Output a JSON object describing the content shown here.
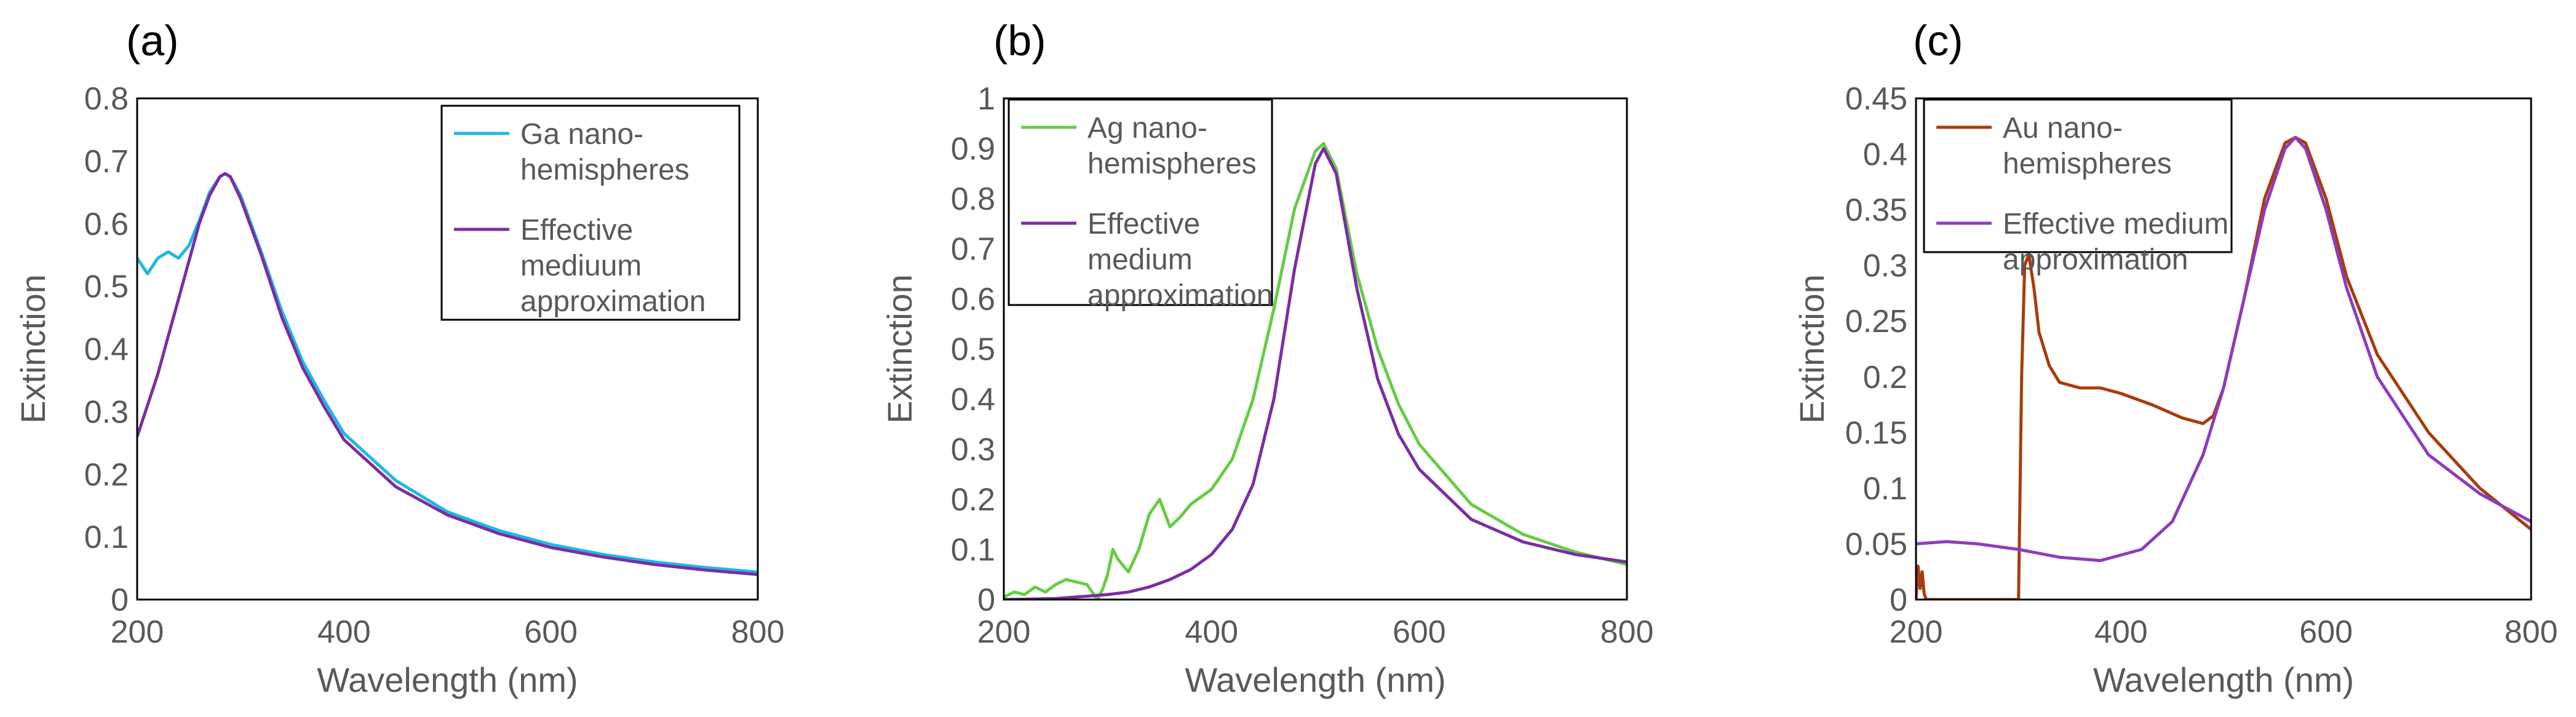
{
  "figure": {
    "colors": {
      "frame": "#000000",
      "tick_text": "#595959",
      "panel_label": "#000000"
    }
  },
  "chart_data": [
    {
      "type": "line",
      "panel_label": "(a)",
      "xlabel": "Wavelength (nm)",
      "ylabel": "Extinction",
      "xlim": [
        200,
        800
      ],
      "ylim": [
        0,
        0.8
      ],
      "xticks": [
        200,
        400,
        600,
        800
      ],
      "yticks": [
        0,
        0.1,
        0.2,
        0.3,
        0.4,
        0.5,
        0.6,
        0.7,
        0.8
      ],
      "grid": false,
      "legend_position": "top-right",
      "series": [
        {
          "name": "Ga nano-hemispheres",
          "legend_lines": [
            "Ga nano-",
            "hemispheres"
          ],
          "color": "#1CB8E6",
          "x": [
            200,
            210,
            220,
            230,
            240,
            250,
            260,
            270,
            280,
            285,
            290,
            300,
            320,
            340,
            360,
            380,
            400,
            450,
            500,
            550,
            600,
            650,
            700,
            750,
            800
          ],
          "y": [
            0.545,
            0.52,
            0.545,
            0.555,
            0.545,
            0.565,
            0.605,
            0.65,
            0.675,
            0.68,
            0.675,
            0.645,
            0.555,
            0.46,
            0.38,
            0.32,
            0.265,
            0.19,
            0.14,
            0.11,
            0.088,
            0.072,
            0.06,
            0.051,
            0.044
          ]
        },
        {
          "name": "Effective mediuum approximation",
          "legend_lines": [
            "Effective",
            "mediuum",
            "approximation"
          ],
          "color": "#7B2DA3",
          "x": [
            200,
            210,
            220,
            230,
            240,
            250,
            260,
            270,
            280,
            285,
            290,
            300,
            320,
            340,
            360,
            380,
            400,
            450,
            500,
            550,
            600,
            650,
            700,
            750,
            800
          ],
          "y": [
            0.26,
            0.31,
            0.36,
            0.42,
            0.48,
            0.54,
            0.6,
            0.645,
            0.675,
            0.68,
            0.675,
            0.64,
            0.55,
            0.45,
            0.37,
            0.31,
            0.255,
            0.18,
            0.135,
            0.105,
            0.083,
            0.068,
            0.056,
            0.047,
            0.04
          ]
        }
      ]
    },
    {
      "type": "line",
      "panel_label": "(b)",
      "xlabel": "Wavelength (nm)",
      "ylabel": "Extinction",
      "xlim": [
        200,
        800
      ],
      "ylim": [
        0,
        1
      ],
      "xticks": [
        200,
        400,
        600,
        800
      ],
      "yticks": [
        0,
        0.1,
        0.2,
        0.3,
        0.4,
        0.5,
        0.6,
        0.7,
        0.8,
        0.9,
        1
      ],
      "grid": false,
      "legend_position": "top-left",
      "series": [
        {
          "name": "Ag nano-hemispheres",
          "legend_lines": [
            "Ag nano-",
            "hemispheres"
          ],
          "color": "#66CC44",
          "x": [
            200,
            210,
            220,
            230,
            240,
            250,
            260,
            270,
            280,
            290,
            295,
            300,
            305,
            310,
            320,
            330,
            340,
            350,
            360,
            370,
            380,
            400,
            420,
            440,
            460,
            480,
            500,
            508,
            520,
            540,
            560,
            580,
            600,
            650,
            700,
            750,
            800
          ],
          "y": [
            0.005,
            0.015,
            0.01,
            0.025,
            0.015,
            0.03,
            0.04,
            0.035,
            0.03,
            0.0,
            0.02,
            0.05,
            0.1,
            0.08,
            0.055,
            0.1,
            0.17,
            0.2,
            0.145,
            0.165,
            0.19,
            0.22,
            0.28,
            0.4,
            0.58,
            0.78,
            0.895,
            0.91,
            0.86,
            0.65,
            0.5,
            0.39,
            0.31,
            0.19,
            0.13,
            0.095,
            0.07
          ]
        },
        {
          "name": "Effective medium approximation",
          "legend_lines": [
            "Effective",
            "medium",
            "approximation"
          ],
          "color": "#7B2DA3",
          "x": [
            200,
            250,
            300,
            320,
            340,
            360,
            380,
            400,
            420,
            440,
            460,
            480,
            500,
            508,
            520,
            540,
            560,
            580,
            600,
            650,
            700,
            750,
            800
          ],
          "y": [
            0.0,
            0.002,
            0.01,
            0.015,
            0.025,
            0.04,
            0.06,
            0.09,
            0.14,
            0.23,
            0.4,
            0.66,
            0.87,
            0.9,
            0.85,
            0.62,
            0.44,
            0.33,
            0.26,
            0.16,
            0.115,
            0.09,
            0.075
          ]
        }
      ]
    },
    {
      "type": "line",
      "panel_label": "(c)",
      "xlabel": "Wavelength (nm)",
      "ylabel": "Extinction",
      "xlim": [
        200,
        800
      ],
      "ylim": [
        0,
        0.45
      ],
      "xticks": [
        200,
        400,
        600,
        800
      ],
      "yticks": [
        0,
        0.05,
        0.1,
        0.15,
        0.2,
        0.25,
        0.3,
        0.35,
        0.4,
        0.45
      ],
      "grid": false,
      "legend_position": "top-left",
      "series": [
        {
          "name": "Au nano-hemispheres",
          "legend_lines": [
            "Au nano-",
            "hemispheres"
          ],
          "color": "#A83C0A",
          "x": [
            200,
            202,
            204,
            206,
            208,
            210,
            300,
            303,
            306,
            310,
            315,
            320,
            330,
            340,
            360,
            380,
            400,
            430,
            460,
            480,
            490,
            500,
            520,
            540,
            560,
            570,
            580,
            600,
            620,
            650,
            700,
            750,
            800
          ],
          "y": [
            0.0,
            0.03,
            0.01,
            0.025,
            0.005,
            0.0,
            0.0,
            0.2,
            0.3,
            0.31,
            0.28,
            0.24,
            0.21,
            0.195,
            0.19,
            0.19,
            0.185,
            0.175,
            0.163,
            0.158,
            0.165,
            0.19,
            0.27,
            0.36,
            0.41,
            0.415,
            0.41,
            0.36,
            0.29,
            0.22,
            0.15,
            0.1,
            0.063
          ]
        },
        {
          "name": "Effective medium approximation",
          "legend_lines": [
            "Effective medium",
            "approximation"
          ],
          "color": "#8E3BBE",
          "x": [
            200,
            230,
            260,
            300,
            340,
            380,
            420,
            450,
            480,
            500,
            520,
            540,
            560,
            570,
            580,
            600,
            620,
            650,
            700,
            750,
            800
          ],
          "y": [
            0.05,
            0.052,
            0.05,
            0.045,
            0.038,
            0.035,
            0.045,
            0.07,
            0.13,
            0.19,
            0.27,
            0.35,
            0.405,
            0.415,
            0.405,
            0.35,
            0.28,
            0.2,
            0.13,
            0.095,
            0.07
          ]
        }
      ]
    }
  ]
}
